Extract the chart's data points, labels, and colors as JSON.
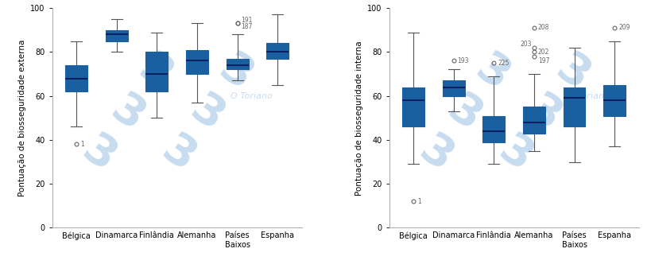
{
  "categories": [
    "Bélgica",
    "Dinamarca",
    "Finlândia",
    "Alemanha",
    "Países\nBaixos",
    "Espanha"
  ],
  "chart1": {
    "ylabel": "Pontuação de biosseguridade externa",
    "boxes": [
      {
        "q1": 62,
        "median": 68,
        "q3": 74,
        "whislo": 46,
        "whishi": 85,
        "fliers": [
          38
        ],
        "flier_labels": [
          [
            38,
            "1",
            0.1,
            0
          ]
        ]
      },
      {
        "q1": 85,
        "median": 88,
        "q3": 90,
        "whislo": 80,
        "whishi": 95,
        "fliers": [],
        "flier_labels": []
      },
      {
        "q1": 62,
        "median": 70,
        "q3": 80,
        "whislo": 50,
        "whishi": 89,
        "fliers": [],
        "flier_labels": []
      },
      {
        "q1": 70,
        "median": 76,
        "q3": 81,
        "whislo": 57,
        "whishi": 93,
        "fliers": [],
        "flier_labels": []
      },
      {
        "q1": 72,
        "median": 74,
        "q3": 77,
        "whislo": 67,
        "whishi": 88,
        "fliers": [
          93,
          93
        ],
        "flier_labels": [
          [
            93,
            "191",
            0.1,
            1.5
          ],
          [
            93,
            "187",
            0.1,
            -1.5
          ]
        ]
      },
      {
        "q1": 77,
        "median": 80,
        "q3": 84,
        "whislo": 65,
        "whishi": 97,
        "fliers": [],
        "flier_labels": []
      }
    ]
  },
  "chart2": {
    "ylabel": "Pontuação de biosseguridade interna",
    "boxes": [
      {
        "q1": 46,
        "median": 58,
        "q3": 64,
        "whislo": 29,
        "whishi": 89,
        "fliers": [
          12
        ],
        "flier_labels": [
          [
            12,
            "1",
            0.1,
            0
          ]
        ]
      },
      {
        "q1": 60,
        "median": 64,
        "q3": 67,
        "whislo": 53,
        "whishi": 72,
        "fliers": [
          76
        ],
        "flier_labels": [
          [
            76,
            "193",
            0.1,
            0
          ]
        ]
      },
      {
        "q1": 39,
        "median": 44,
        "q3": 51,
        "whislo": 29,
        "whishi": 69,
        "fliers": [
          75
        ],
        "flier_labels": [
          [
            75,
            "225",
            0.1,
            0
          ]
        ]
      },
      {
        "q1": 43,
        "median": 48,
        "q3": 55,
        "whislo": 35,
        "whishi": 70,
        "fliers": [
          82,
          80,
          78,
          91
        ],
        "flier_labels": [
          [
            82,
            "203",
            -0.05,
            1.5
          ],
          [
            80,
            "202",
            0.1,
            0
          ],
          [
            78,
            "197",
            0.1,
            -2
          ],
          [
            91,
            "208",
            0.1,
            0
          ]
        ]
      },
      {
        "q1": 46,
        "median": 59,
        "q3": 64,
        "whislo": 30,
        "whishi": 82,
        "fliers": [],
        "flier_labels": []
      },
      {
        "q1": 51,
        "median": 58,
        "q3": 65,
        "whislo": 37,
        "whishi": 85,
        "fliers": [
          91
        ],
        "flier_labels": [
          [
            91,
            "209",
            0.1,
            0
          ]
        ]
      }
    ]
  },
  "box_facecolor": "#2A7FD4",
  "box_edgecolor": "#1A5FA0",
  "median_color": "#0A2060",
  "whisker_color": "#555555",
  "cap_color": "#555555",
  "outlier_edgecolor": "#666666",
  "label_color": "#666666",
  "ylim": [
    0,
    100
  ],
  "yticks": [
    0,
    20,
    40,
    60,
    80,
    100
  ],
  "bg_color": "#FFFFFF",
  "plot_bg_color": "#FFFFFF",
  "watermark_color": "#C8DCF0",
  "spine_color": "#AAAAAA",
  "box_width": 0.55,
  "fig_width": 8.2,
  "fig_height": 3.37,
  "dpi": 100,
  "ylabel_fontsize": 7.5,
  "tick_fontsize": 7,
  "outlier_label_fontsize": 5.5,
  "watermark_fontsize": 40,
  "watermark_alpha": 1.0
}
